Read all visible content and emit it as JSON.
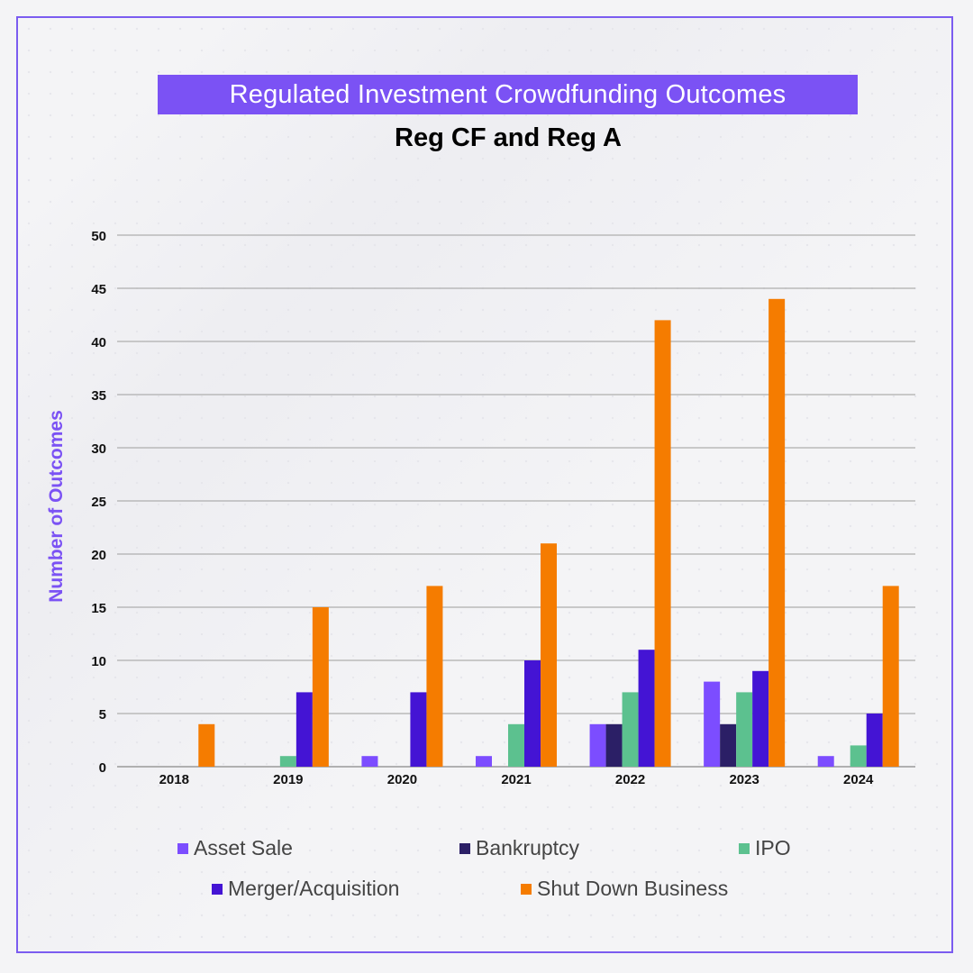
{
  "title": "Regulated Investment Crowdfunding Outcomes",
  "subtitle": "Reg CF and Reg A",
  "chart_data": {
    "type": "bar",
    "ylabel": "Number of Outcomes",
    "xlabel": "",
    "ylim": [
      0,
      50
    ],
    "yticks": [
      0,
      5,
      10,
      15,
      20,
      25,
      30,
      35,
      40,
      45,
      50
    ],
    "grid": true,
    "legend_position": "bottom",
    "categories": [
      "2018",
      "2019",
      "2020",
      "2021",
      "2022",
      "2023",
      "2024"
    ],
    "series": [
      {
        "name": "Asset Sale",
        "color": "#7c4dff",
        "values": [
          0,
          0,
          1,
          1,
          4,
          8,
          1
        ]
      },
      {
        "name": "Bankruptcy",
        "color": "#2b1f66",
        "values": [
          0,
          0,
          0,
          0,
          4,
          4,
          0
        ]
      },
      {
        "name": "IPO",
        "color": "#5cc18f",
        "values": [
          0,
          1,
          0,
          4,
          7,
          7,
          2
        ]
      },
      {
        "name": "Merger/Acquisition",
        "color": "#4414d4",
        "values": [
          0,
          7,
          7,
          10,
          11,
          9,
          5
        ]
      },
      {
        "name": "Shut Down Business",
        "color": "#f57c00",
        "values": [
          4,
          15,
          17,
          21,
          42,
          44,
          17
        ]
      }
    ]
  }
}
